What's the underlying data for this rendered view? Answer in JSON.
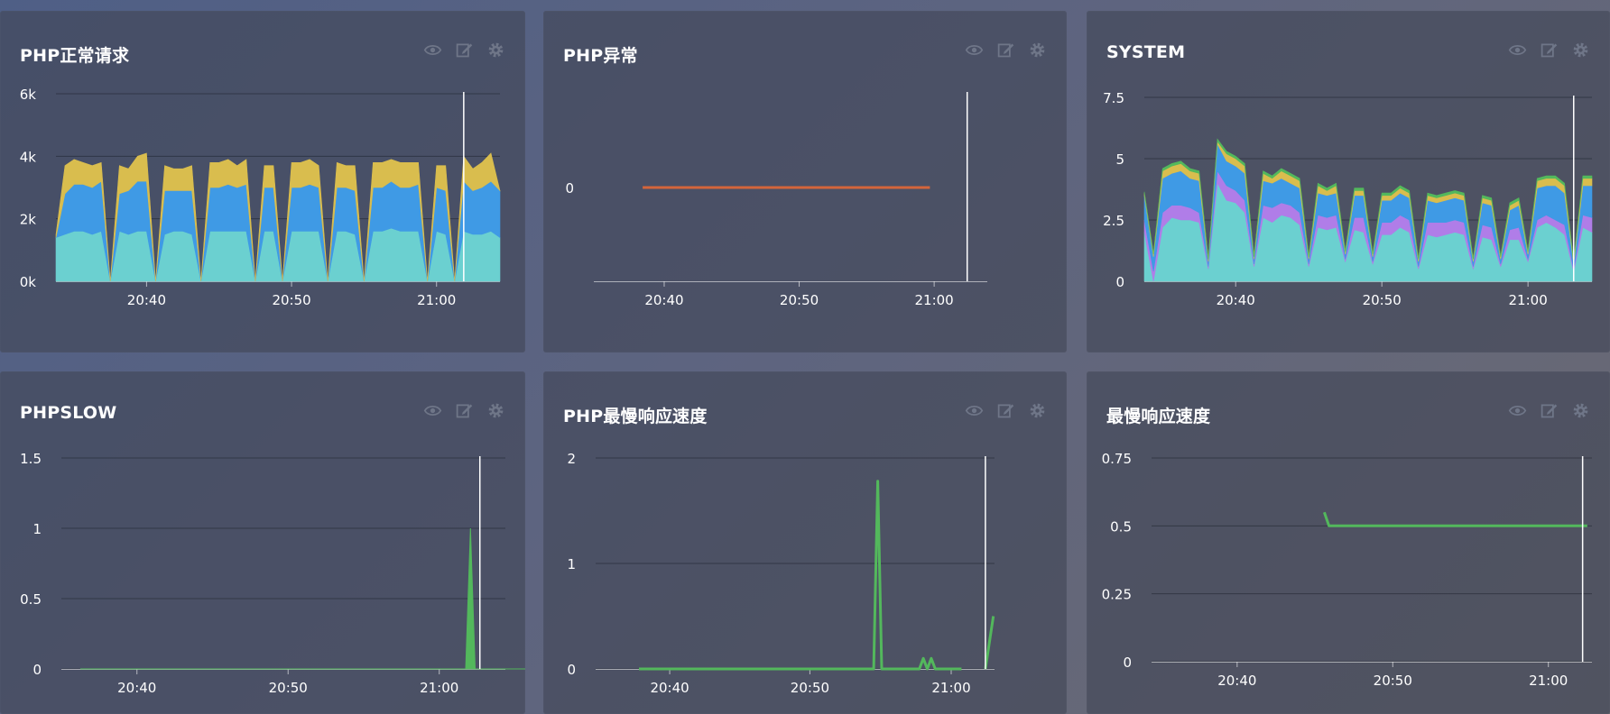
{
  "ui": {
    "icons": [
      "eye-icon",
      "edit-icon",
      "gear-icon"
    ]
  },
  "panels": [
    {
      "id": "p1",
      "title": "PHP正常请求",
      "chart_data": {
        "type": "area",
        "stacked": true,
        "x": [
          0,
          1,
          2,
          3,
          4,
          5,
          6,
          7,
          8,
          9,
          10,
          11,
          12,
          13,
          14,
          15,
          16,
          17,
          18,
          19,
          20,
          21,
          22,
          23,
          24,
          25,
          26,
          27,
          28,
          29,
          30,
          31,
          32,
          33,
          34,
          35,
          36,
          37,
          38,
          39,
          40,
          41,
          42,
          43,
          44,
          45,
          46,
          47,
          48,
          49
        ],
        "xticks": [
          {
            "pos": 10,
            "label": "20:40"
          },
          {
            "pos": 26,
            "label": "20:50"
          },
          {
            "pos": 42,
            "label": "21:00"
          }
        ],
        "ylim": [
          0,
          6000
        ],
        "yticks": [
          {
            "value": 0,
            "label": "0k"
          },
          {
            "value": 2000,
            "label": "2k"
          },
          {
            "value": 4000,
            "label": "4k"
          },
          {
            "value": 6000,
            "label": "6k"
          }
        ],
        "cursor_x": 45,
        "series": [
          {
            "color": "#6bd0d0",
            "values": [
              1400,
              1500,
              1600,
              1600,
              1500,
              1600,
              0,
              1600,
              1500,
              1600,
              1600,
              0,
              1500,
              1600,
              1600,
              1500,
              0,
              1600,
              1600,
              1600,
              1600,
              1600,
              0,
              1600,
              1600,
              0,
              1600,
              1600,
              1600,
              1600,
              0,
              1600,
              1600,
              1500,
              0,
              1600,
              1600,
              1700,
              1600,
              1600,
              1600,
              0,
              1600,
              1500,
              0,
              1600,
              1500,
              1500,
              1600,
              1400
            ]
          },
          {
            "color": "#3f9ae5",
            "values": [
              0,
              1300,
              1500,
              1500,
              1500,
              1600,
              0,
              1200,
              1400,
              1600,
              1600,
              0,
              1400,
              1300,
              1300,
              1400,
              0,
              1400,
              1400,
              1500,
              1400,
              1500,
              0,
              1400,
              1400,
              0,
              1400,
              1400,
              1500,
              1400,
              0,
              1400,
              1400,
              1400,
              0,
              1400,
              1400,
              1500,
              1400,
              1400,
              1500,
              0,
              1400,
              1400,
              0,
              1600,
              1400,
              1500,
              1600,
              1500
            ]
          },
          {
            "color": "#d9bd4e",
            "values": [
              100,
              900,
              800,
              700,
              700,
              600,
              0,
              900,
              700,
              800,
              900,
              0,
              800,
              700,
              700,
              800,
              0,
              800,
              800,
              800,
              700,
              800,
              0,
              700,
              700,
              0,
              800,
              800,
              800,
              700,
              0,
              800,
              700,
              800,
              0,
              800,
              800,
              700,
              800,
              800,
              700,
              0,
              700,
              800,
              0,
              800,
              700,
              800,
              900,
              0
            ]
          }
        ]
      }
    },
    {
      "id": "p2",
      "title": "PHP异常",
      "chart_data": {
        "type": "line",
        "x": [
          0,
          1
        ],
        "xticks": [
          {
            "pos": 0.075,
            "label": "20:40"
          },
          {
            "pos": 0.545,
            "label": "20:50"
          },
          {
            "pos": 1.015,
            "label": "21:00"
          }
        ],
        "ylim": [
          -1,
          1
        ],
        "yticks": [
          {
            "value": 0,
            "label": "0"
          }
        ],
        "cursor_x": 1.13,
        "series": [
          {
            "color": "#d4653b",
            "values": [
              0,
              0
            ]
          }
        ],
        "xrange": [
          -0.17,
          1.2
        ]
      }
    },
    {
      "id": "p3",
      "title": "SYSTEM",
      "chart_data": {
        "type": "area",
        "stacked": true,
        "x": [
          0,
          1,
          2,
          3,
          4,
          5,
          6,
          7,
          8,
          9,
          10,
          11,
          12,
          13,
          14,
          15,
          16,
          17,
          18,
          19,
          20,
          21,
          22,
          23,
          24,
          25,
          26,
          27,
          28,
          29,
          30,
          31,
          32,
          33,
          34,
          35,
          36,
          37,
          38,
          39,
          40,
          41,
          42,
          43,
          44,
          45,
          46,
          47,
          48,
          49
        ],
        "xticks": [
          {
            "pos": 10,
            "label": "20:40"
          },
          {
            "pos": 26,
            "label": "20:50"
          },
          {
            "pos": 42,
            "label": "21:00"
          }
        ],
        "ylim": [
          0,
          7.5
        ],
        "yticks": [
          {
            "value": 0,
            "label": "0"
          },
          {
            "value": 2.5,
            "label": "2.5"
          },
          {
            "value": 5,
            "label": "5"
          },
          {
            "value": 7.5,
            "label": "7.5"
          }
        ],
        "cursor_x": 47,
        "series": [
          {
            "color": "#6bd0d0",
            "values": [
              2.0,
              0,
              2.2,
              2.6,
              2.5,
              2.5,
              2.4,
              0.5,
              4.0,
              3.3,
              3.2,
              2.8,
              0.6,
              2.6,
              2.4,
              2.7,
              2.6,
              2.3,
              0.6,
              2.2,
              2.1,
              2.2,
              0.8,
              2.1,
              2.0,
              0.7,
              1.9,
              1.9,
              2.2,
              2.0,
              0.5,
              1.9,
              1.8,
              1.9,
              2.0,
              1.9,
              0.5,
              1.8,
              1.7,
              0.6,
              1.7,
              1.7,
              0.8,
              2.2,
              2.4,
              2.2,
              1.9,
              0.4,
              2.2,
              2.0
            ]
          },
          {
            "color": "#b07de8",
            "values": [
              0.5,
              0.4,
              0.6,
              0.5,
              0.6,
              0.5,
              0.4,
              0.1,
              0.5,
              0.6,
              0.5,
              0.5,
              0.1,
              0.5,
              0.6,
              0.5,
              0.5,
              0.5,
              0.1,
              0.5,
              0.5,
              0.5,
              0.1,
              0.5,
              0.6,
              0.1,
              0.5,
              0.5,
              0.5,
              0.5,
              0.1,
              0.5,
              0.6,
              0.5,
              0.5,
              0.5,
              0.1,
              0.5,
              0.5,
              0.1,
              0.4,
              0.5,
              0.1,
              0.3,
              0.3,
              0.3,
              0.4,
              0.1,
              0.5,
              0.6
            ]
          },
          {
            "color": "#3f9ae5",
            "values": [
              1.0,
              0.6,
              1.4,
              1.3,
              1.4,
              1.2,
              1.3,
              0.2,
              1.1,
              1.0,
              1.0,
              1.1,
              0.2,
              1.0,
              1.0,
              1.0,
              0.9,
              1.0,
              0.2,
              0.9,
              0.9,
              0.9,
              0.2,
              0.9,
              0.9,
              0.2,
              0.9,
              0.9,
              0.9,
              0.9,
              0.2,
              0.9,
              0.8,
              0.9,
              0.9,
              0.9,
              0.2,
              0.9,
              0.9,
              0.2,
              0.8,
              0.9,
              0.2,
              1.3,
              1.2,
              1.4,
              1.3,
              0.2,
              1.2,
              1.3
            ]
          },
          {
            "color": "#d9bd4e",
            "values": [
              0.1,
              0.1,
              0.3,
              0.3,
              0.3,
              0.3,
              0.3,
              0.1,
              0.1,
              0.3,
              0.3,
              0.3,
              0.1,
              0.3,
              0.2,
              0.3,
              0.3,
              0.3,
              0.1,
              0.3,
              0.2,
              0.3,
              0.1,
              0.2,
              0.2,
              0.1,
              0.2,
              0.2,
              0.2,
              0.2,
              0.1,
              0.2,
              0.2,
              0.2,
              0.2,
              0.2,
              0.1,
              0.2,
              0.2,
              0.1,
              0.2,
              0.2,
              0.1,
              0.3,
              0.3,
              0.3,
              0.3,
              0.1,
              0.3,
              0.3
            ]
          },
          {
            "color": "#53b85c",
            "values": [
              0.05,
              0.05,
              0.1,
              0.1,
              0.1,
              0.1,
              0.1,
              0.05,
              0.1,
              0.1,
              0.1,
              0.1,
              0.05,
              0.1,
              0.1,
              0.1,
              0.1,
              0.1,
              0.05,
              0.1,
              0.1,
              0.1,
              0.05,
              0.1,
              0.1,
              0.05,
              0.1,
              0.1,
              0.1,
              0.1,
              0.05,
              0.1,
              0.1,
              0.1,
              0.1,
              0.1,
              0.05,
              0.1,
              0.1,
              0.05,
              0.1,
              0.1,
              0.05,
              0.1,
              0.1,
              0.1,
              0.1,
              0.05,
              0.1,
              0.1
            ]
          }
        ]
      }
    },
    {
      "id": "p4",
      "title": "PHPSLOW",
      "chart_data": {
        "type": "area",
        "stacked": false,
        "x": [
          0,
          40.8,
          41.3,
          41.8,
          49
        ],
        "xticks": [
          {
            "pos": 6,
            "label": "20:40"
          },
          {
            "pos": 22,
            "label": "20:50"
          },
          {
            "pos": 38,
            "label": "21:00"
          }
        ],
        "ylim": [
          0,
          1.5
        ],
        "yticks": [
          {
            "value": 0,
            "label": "0"
          },
          {
            "value": 0.5,
            "label": "0.5"
          },
          {
            "value": 1,
            "label": "1"
          },
          {
            "value": 1.5,
            "label": "1.5"
          }
        ],
        "cursor_x": 42.3,
        "xrange": [
          -2,
          45
        ],
        "series": [
          {
            "color": "#53b85c",
            "values": [
              0,
              0,
              1,
              0,
              0
            ]
          }
        ]
      }
    },
    {
      "id": "p5",
      "title": "PHP最慢响应速度",
      "chart_data": {
        "type": "line",
        "x": [
          0,
          20.6,
          20.95,
          21.3,
          24.6,
          24.95,
          25.3,
          25.65,
          26.0,
          28.3
        ],
        "xticks": [
          {
            "pos": 2.7,
            "label": "20:40"
          },
          {
            "pos": 15.0,
            "label": "20:50"
          },
          {
            "pos": 27.4,
            "label": "21:00"
          }
        ],
        "ylim": [
          0,
          2
        ],
        "yticks": [
          {
            "value": 0,
            "label": "0"
          },
          {
            "value": 1,
            "label": "1"
          },
          {
            "value": 2,
            "label": "2"
          }
        ],
        "cursor_x": 30.4,
        "xrange": [
          -3.8,
          31.2
        ],
        "series": [
          {
            "color": "#53b85c",
            "values": [
              0,
              0,
              1.78,
              0,
              0,
              0.1,
              0,
              0.1,
              0,
              0
            ]
          }
        ],
        "tail": {
          "x": [
            30.4,
            31.1
          ],
          "values": [
            0,
            0.5
          ]
        }
      }
    },
    {
      "id": "p6",
      "title": "最慢响应速度",
      "chart_data": {
        "type": "line",
        "x": [
          11.1,
          11.4,
          28
        ],
        "xticks": [
          {
            "pos": 5.5,
            "label": "20:40"
          },
          {
            "pos": 15.5,
            "label": "20:50"
          },
          {
            "pos": 25.5,
            "label": "21:00"
          }
        ],
        "ylim": [
          0,
          0.75
        ],
        "yticks": [
          {
            "value": 0,
            "label": "0"
          },
          {
            "value": 0.25,
            "label": "0.25"
          },
          {
            "value": 0.5,
            "label": "0.5"
          },
          {
            "value": 0.75,
            "label": "0.75"
          }
        ],
        "cursor_x": 27.7,
        "xrange": [
          0,
          28.3
        ],
        "series": [
          {
            "color": "#53b85c",
            "values": [
              0.55,
              0.5,
              0.5
            ]
          }
        ]
      }
    }
  ]
}
